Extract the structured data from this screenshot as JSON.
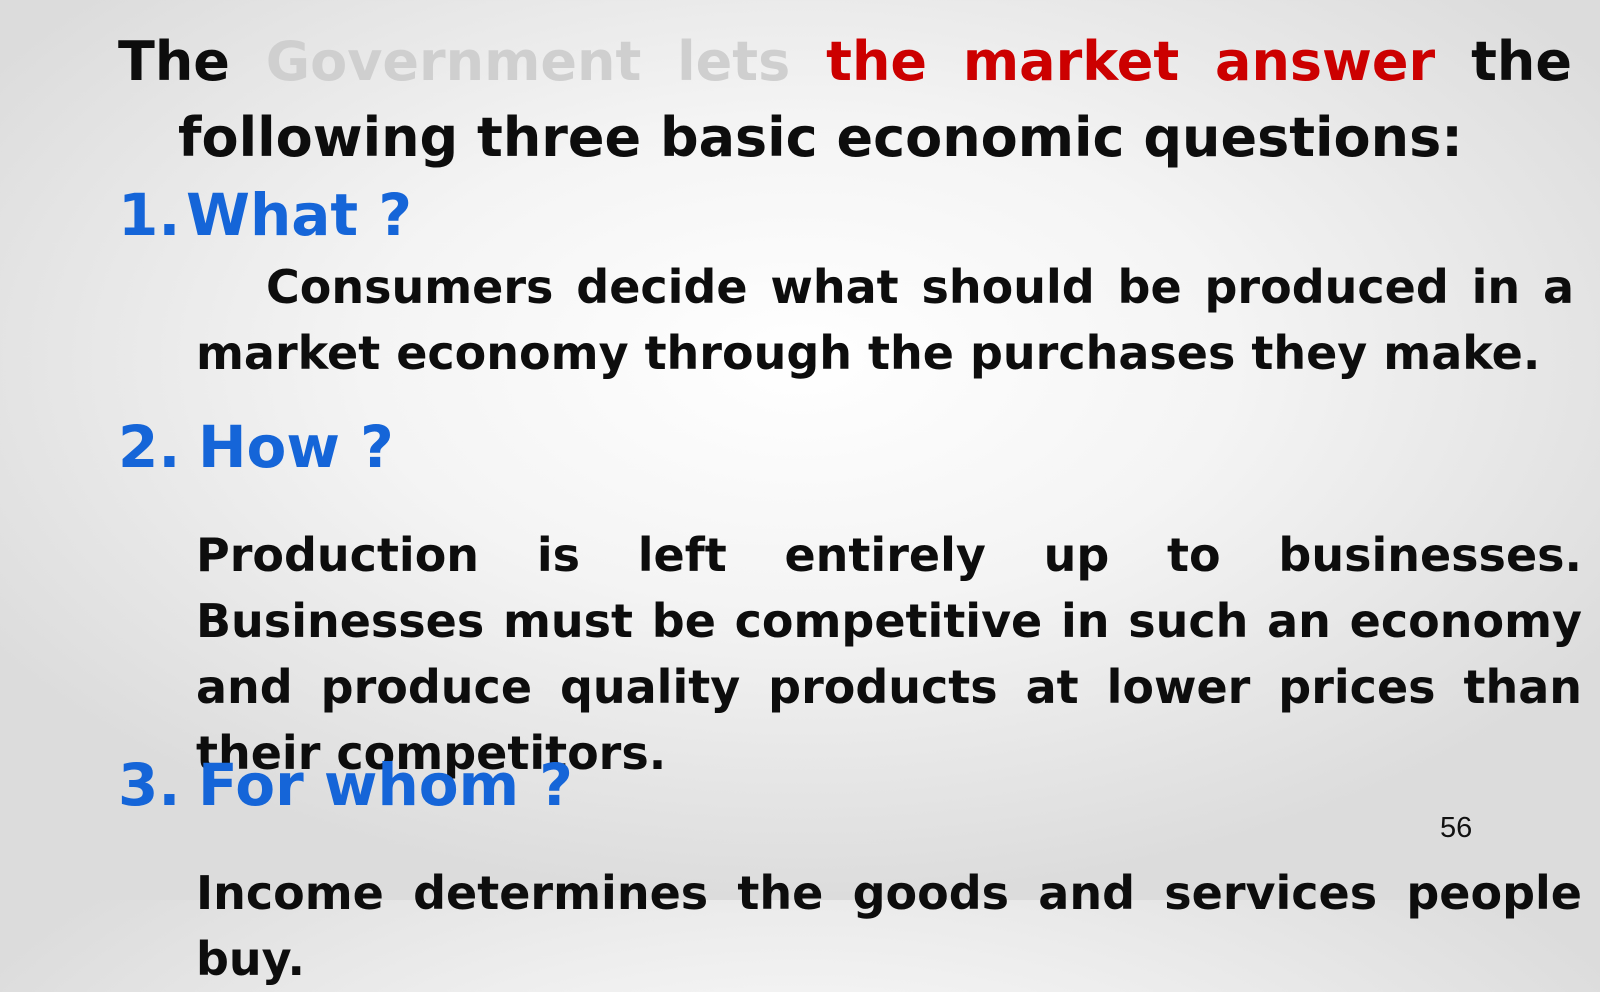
{
  "intro": {
    "word_the": "The",
    "word_government": "Government",
    "word_lets": "lets",
    "phrase_highlight": "the market answer",
    "word_the_end": "the",
    "line2": "following three basic economic questions:"
  },
  "questions": [
    {
      "number": "1.",
      "title": "What ?",
      "body": "Consumers decide what should be produced in a market economy through the purchases they make."
    },
    {
      "number": "2.",
      "title": "How ?",
      "body": "Production is left entirely up to businesses. Businesses must be competitive in such an economy and produce quality products at lower prices than their competitors."
    },
    {
      "number": "3.",
      "title": "For whom ?",
      "body": "Income determines the goods and services people buy."
    }
  ],
  "page_number": "56",
  "colors": {
    "heading_blue": "#1565d8",
    "highlight_red": "#cc0000",
    "muted_gray": "#cfcfcf",
    "text_black": "#0d0d0d"
  }
}
